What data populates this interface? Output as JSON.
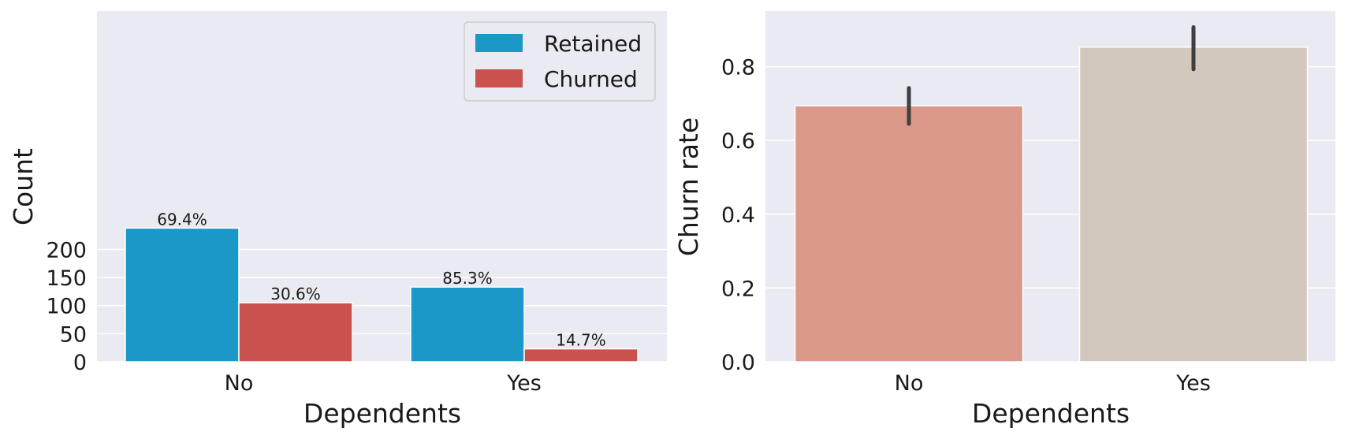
{
  "colors": {
    "panel_bg": "#EAEAF2",
    "grid": "#FFFFFF",
    "retained": "#1B98C7",
    "churned": "#C9524D",
    "no_bar": "#DB9888",
    "yes_bar": "#D2C8BE",
    "error_bar": "#3F3F3F"
  },
  "chart_data": [
    {
      "type": "bar",
      "categories": [
        "No",
        "Yes"
      ],
      "series": [
        {
          "name": "Retained",
          "values": [
            238,
            133
          ],
          "labels": [
            "69.4%",
            "85.3%"
          ]
        },
        {
          "name": "Churned",
          "values": [
            105,
            23
          ],
          "labels": [
            "30.6%",
            "14.7%"
          ]
        }
      ],
      "xlabel": "Dependents",
      "ylabel": "Count",
      "ylim": [
        0,
        250
      ],
      "yticks": [
        0,
        50,
        100,
        150,
        200
      ],
      "grid": true,
      "legend": "top-right"
    },
    {
      "type": "bar",
      "categories": [
        "No",
        "Yes"
      ],
      "values": [
        0.694,
        0.853
      ],
      "error": [
        [
          0.645,
          0.742
        ],
        [
          0.793,
          0.907
        ]
      ],
      "xlabel": "Dependents",
      "ylabel": "Churn rate",
      "ylim": [
        0,
        0.95
      ],
      "yticks": [
        "0.0",
        "0.2",
        "0.4",
        "0.6",
        "0.8"
      ],
      "grid": true
    }
  ]
}
